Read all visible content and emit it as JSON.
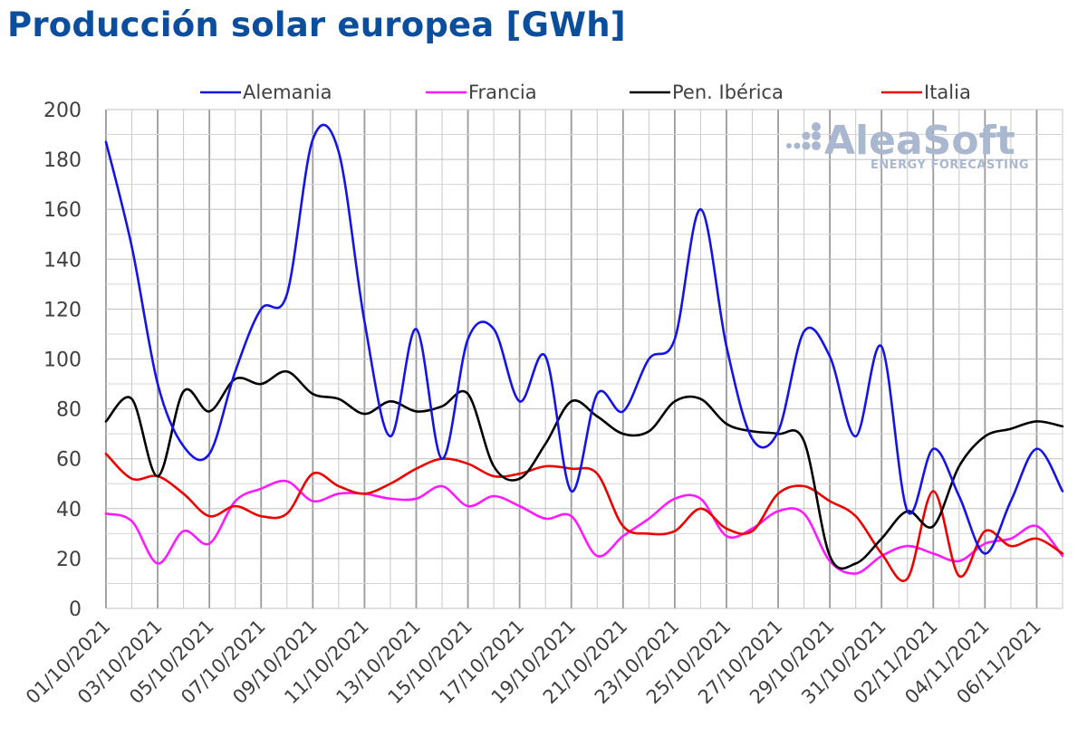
{
  "title": "Producción solar europea [GWh]",
  "logo": {
    "name": "AleaSoft",
    "tagline": "ENERGY FORECASTING",
    "color": "#a9b7cf"
  },
  "chart_data": {
    "type": "line",
    "title": "Producción solar europea [GWh]",
    "ylim": [
      0,
      200
    ],
    "yticks": [
      0,
      20,
      40,
      60,
      80,
      100,
      120,
      140,
      160,
      180,
      200
    ],
    "grid": true,
    "legend_position": "top",
    "x": [
      "01/10/2021",
      "02/10/2021",
      "03/10/2021",
      "04/10/2021",
      "05/10/2021",
      "06/10/2021",
      "07/10/2021",
      "08/10/2021",
      "09/10/2021",
      "10/10/2021",
      "11/10/2021",
      "12/10/2021",
      "13/10/2021",
      "14/10/2021",
      "15/10/2021",
      "16/10/2021",
      "17/10/2021",
      "18/10/2021",
      "19/10/2021",
      "20/10/2021",
      "21/10/2021",
      "22/10/2021",
      "23/10/2021",
      "24/10/2021",
      "25/10/2021",
      "26/10/2021",
      "27/10/2021",
      "28/10/2021",
      "29/10/2021",
      "30/10/2021",
      "31/10/2021",
      "01/11/2021",
      "02/11/2021",
      "03/11/2021",
      "04/11/2021",
      "05/11/2021",
      "06/11/2021",
      "07/11/2021"
    ],
    "xtick_labels": [
      "01/10/2021",
      "03/10/2021",
      "05/10/2021",
      "07/10/2021",
      "09/10/2021",
      "11/10/2021",
      "13/10/2021",
      "15/10/2021",
      "17/10/2021",
      "19/10/2021",
      "21/10/2021",
      "23/10/2021",
      "25/10/2021",
      "27/10/2021",
      "29/10/2021",
      "31/10/2021",
      "02/11/2021",
      "04/11/2021",
      "06/11/2021"
    ],
    "series": [
      {
        "name": "Alemania",
        "color": "#1414e6",
        "values": [
          187,
          145,
          90,
          65,
          62,
          95,
          120,
          126,
          188,
          183,
          115,
          69,
          112,
          60,
          108,
          112,
          83,
          101,
          47,
          86,
          79,
          100,
          108,
          160,
          105,
          68,
          71,
          111,
          101,
          69,
          105,
          39,
          64,
          45,
          22,
          43,
          64,
          47
        ]
      },
      {
        "name": "Francia",
        "color": "#ff1aff",
        "values": [
          38,
          35,
          18,
          31,
          26,
          43,
          48,
          51,
          43,
          46,
          46,
          44,
          44,
          49,
          41,
          45,
          41,
          36,
          37,
          21,
          29,
          36,
          44,
          44,
          29,
          32,
          39,
          38,
          19,
          14,
          21,
          25,
          22,
          19,
          26,
          28,
          33,
          21
        ]
      },
      {
        "name": "Pen. Ibérica",
        "color": "#000000",
        "values": [
          75,
          84,
          53,
          87,
          79,
          92,
          90,
          95,
          86,
          84,
          78,
          83,
          79,
          81,
          86,
          57,
          52,
          66,
          83,
          77,
          70,
          71,
          83,
          84,
          74,
          71,
          70,
          67,
          21,
          18,
          28,
          39,
          33,
          57,
          69,
          72,
          75,
          73
        ]
      },
      {
        "name": "Italia",
        "color": "#ee0000",
        "values": [
          62,
          52,
          53,
          46,
          37,
          41,
          37,
          38,
          54,
          49,
          46,
          50,
          56,
          60,
          58,
          53,
          54,
          57,
          56,
          54,
          33,
          30,
          31,
          40,
          32,
          31,
          46,
          49,
          43,
          37,
          22,
          12,
          47,
          13,
          31,
          25,
          28,
          22
        ]
      }
    ]
  }
}
